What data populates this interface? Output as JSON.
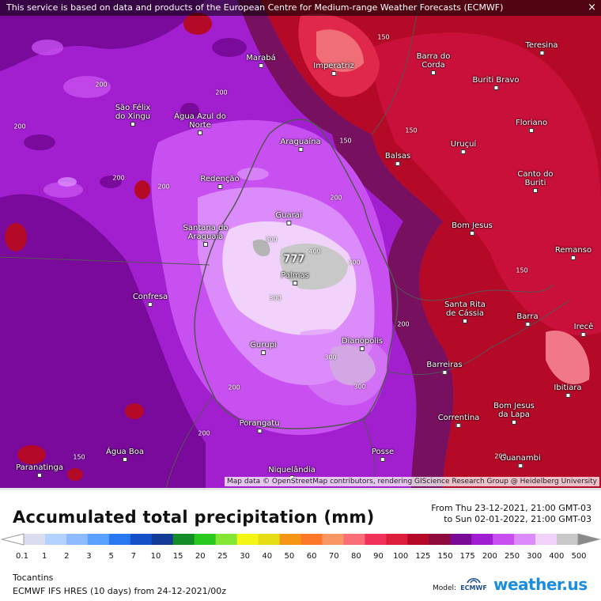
{
  "banner": "This service is based on data and products of the European Centre for Medium-range Weather Forecasts (ECMWF)",
  "close_icon": "×",
  "attribution": "Map data © OpenStreetMap contributors, rendering GIScience Research Group @ Heidelberg University",
  "max_value": "777",
  "cities": [
    {
      "name": "Marabá"
    },
    {
      "name": "Imperatriz"
    },
    {
      "name": "Barra do Corda"
    },
    {
      "name": "Teresina"
    },
    {
      "name": "São Félix do Xingu"
    },
    {
      "name": "Água Azul do Norte"
    },
    {
      "name": "Buriti Bravo"
    },
    {
      "name": "Araguaína"
    },
    {
      "name": "Floriano"
    },
    {
      "name": "Uruçuí"
    },
    {
      "name": "Balsas"
    },
    {
      "name": "Redenção"
    },
    {
      "name": "Canto do Buriti"
    },
    {
      "name": "Guaraí"
    },
    {
      "name": "Santana do Araguaia"
    },
    {
      "name": "Bom Jesus"
    },
    {
      "name": "Remanso"
    },
    {
      "name": "Palmas"
    },
    {
      "name": "Confresa"
    },
    {
      "name": "Santa Rita de Cássia"
    },
    {
      "name": "Barra"
    },
    {
      "name": "Irecê"
    },
    {
      "name": "Gurupi"
    },
    {
      "name": "Dianópolis"
    },
    {
      "name": "Barreiras"
    },
    {
      "name": "Ibitiara"
    },
    {
      "name": "Porangatu"
    },
    {
      "name": "Correntina"
    },
    {
      "name": "Bom Jesus da Lapa"
    },
    {
      "name": "Água Boa"
    },
    {
      "name": "Posse"
    },
    {
      "name": "Guanambi"
    },
    {
      "name": "Paranatinga"
    },
    {
      "name": "Niquelândia"
    }
  ],
  "isolines": [
    "200",
    "200",
    "200",
    "200",
    "200",
    "150",
    "150",
    "150",
    "200",
    "300",
    "400",
    "300",
    "300",
    "300",
    "300",
    "200",
    "200",
    "200",
    "150",
    "150",
    "200"
  ],
  "legend": {
    "title": "Accumulated total precipitation (mm)",
    "from": "From Thu 23-12-2021, 21:00 GMT-03",
    "to": "to Sun 02-01-2022, 21:00 GMT-03",
    "ticks": [
      "0.1",
      "1",
      "2",
      "3",
      "5",
      "7",
      "10",
      "15",
      "20",
      "25",
      "30",
      "40",
      "50",
      "60",
      "70",
      "80",
      "90",
      "100",
      "125",
      "150",
      "175",
      "200",
      "250",
      "300",
      "400",
      "500"
    ],
    "colors": [
      "#dcdcf0",
      "#b4d2ff",
      "#8cbcff",
      "#5aa0ff",
      "#2878f0",
      "#1450c8",
      "#143c96",
      "#148c28",
      "#28c81e",
      "#82e632",
      "#f5f514",
      "#e6dc14",
      "#f59614",
      "#fa7828",
      "#fa9664",
      "#fa6e78",
      "#f0325a",
      "#dc1e3c",
      "#b40a28",
      "#8c0a3c",
      "#780a96",
      "#a01ed2",
      "#c850f0",
      "#dc8cfa",
      "#f0d2fa",
      "#c8c8c8"
    ],
    "region": "Tocantins",
    "model": "ECMWF IFS HRES (10 days) from 24-12-2021/00z",
    "model_label": "Model:",
    "ecmwf_logo": "ECMWF",
    "brand": "weather.us"
  }
}
